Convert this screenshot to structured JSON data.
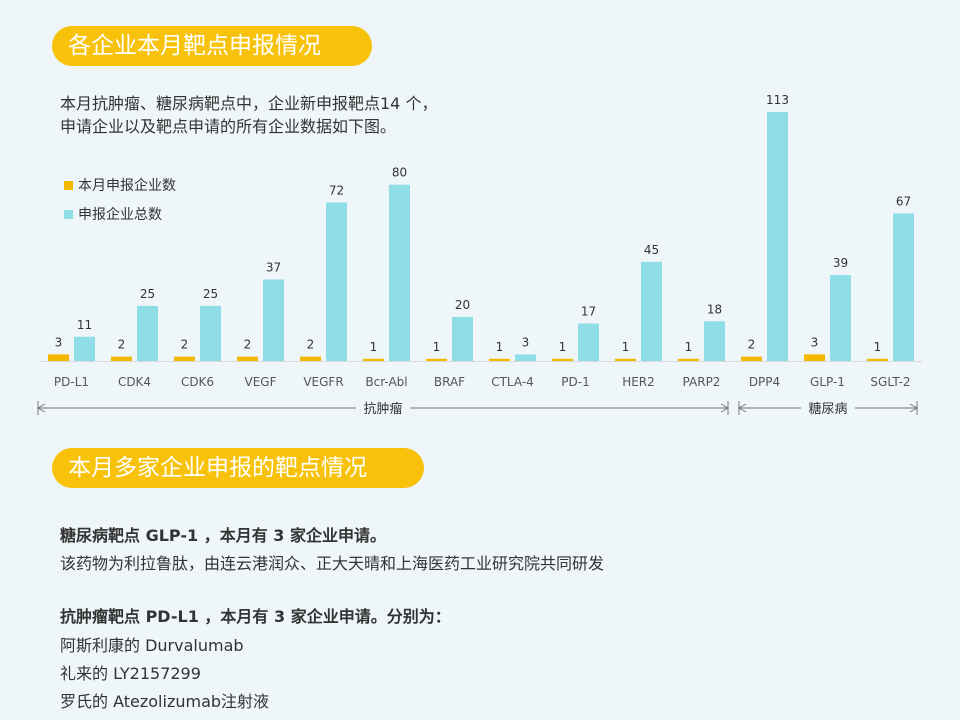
{
  "section1": {
    "title": "各企业本月靶点申报情况",
    "intro_line1": "本月抗肿瘤、糖尿病靶点中，企业新申报靶点14 个，",
    "intro_line2": "申请企业以及靶点申请的所有企业数据如下图。"
  },
  "section2": {
    "title": "本月多家企业申报的靶点情况",
    "glp1_heading": "糖尿病靶点 GLP-1 ，本月有 3 家企业申请。",
    "glp1_text": "该药物为利拉鲁肽，由连云港润众、正大天晴和上海医药工业研究院共同研发",
    "pdl1_heading": "抗肿瘤靶点 PD-L1 ，本月有 3 家企业申请。分别为：",
    "pdl1_items": [
      "阿斯利康的 Durvalumab",
      "礼来的 LY2157299",
      "罗氏的 Atezolizumab注射液"
    ]
  },
  "chart_data": {
    "type": "bar",
    "categories": [
      "PD-L1",
      "CDK4",
      "CDK6",
      "VEGF",
      "VEGFR",
      "Bcr-Abl",
      "BRAF",
      "CTLA-4",
      "PD-1",
      "HER2",
      "PARP2",
      "DPP4",
      "GLP-1",
      "SGLT-2"
    ],
    "series": [
      {
        "name": "本月申报企业数",
        "values": [
          3,
          2,
          2,
          2,
          2,
          1,
          1,
          1,
          1,
          1,
          1,
          2,
          3,
          1
        ],
        "color": "#f5b800"
      },
      {
        "name": "申报企业总数",
        "values": [
          11,
          25,
          25,
          37,
          72,
          80,
          20,
          3,
          17,
          45,
          18,
          113,
          39,
          67
        ],
        "color": "#8fdde6"
      }
    ],
    "groups": [
      {
        "label": "抗肿瘤",
        "from": 0,
        "to": 10
      },
      {
        "label": "糖尿病",
        "from": 11,
        "to": 13
      }
    ],
    "ylim": [
      0,
      113
    ],
    "legend_position": "top-left",
    "grid": false
  }
}
